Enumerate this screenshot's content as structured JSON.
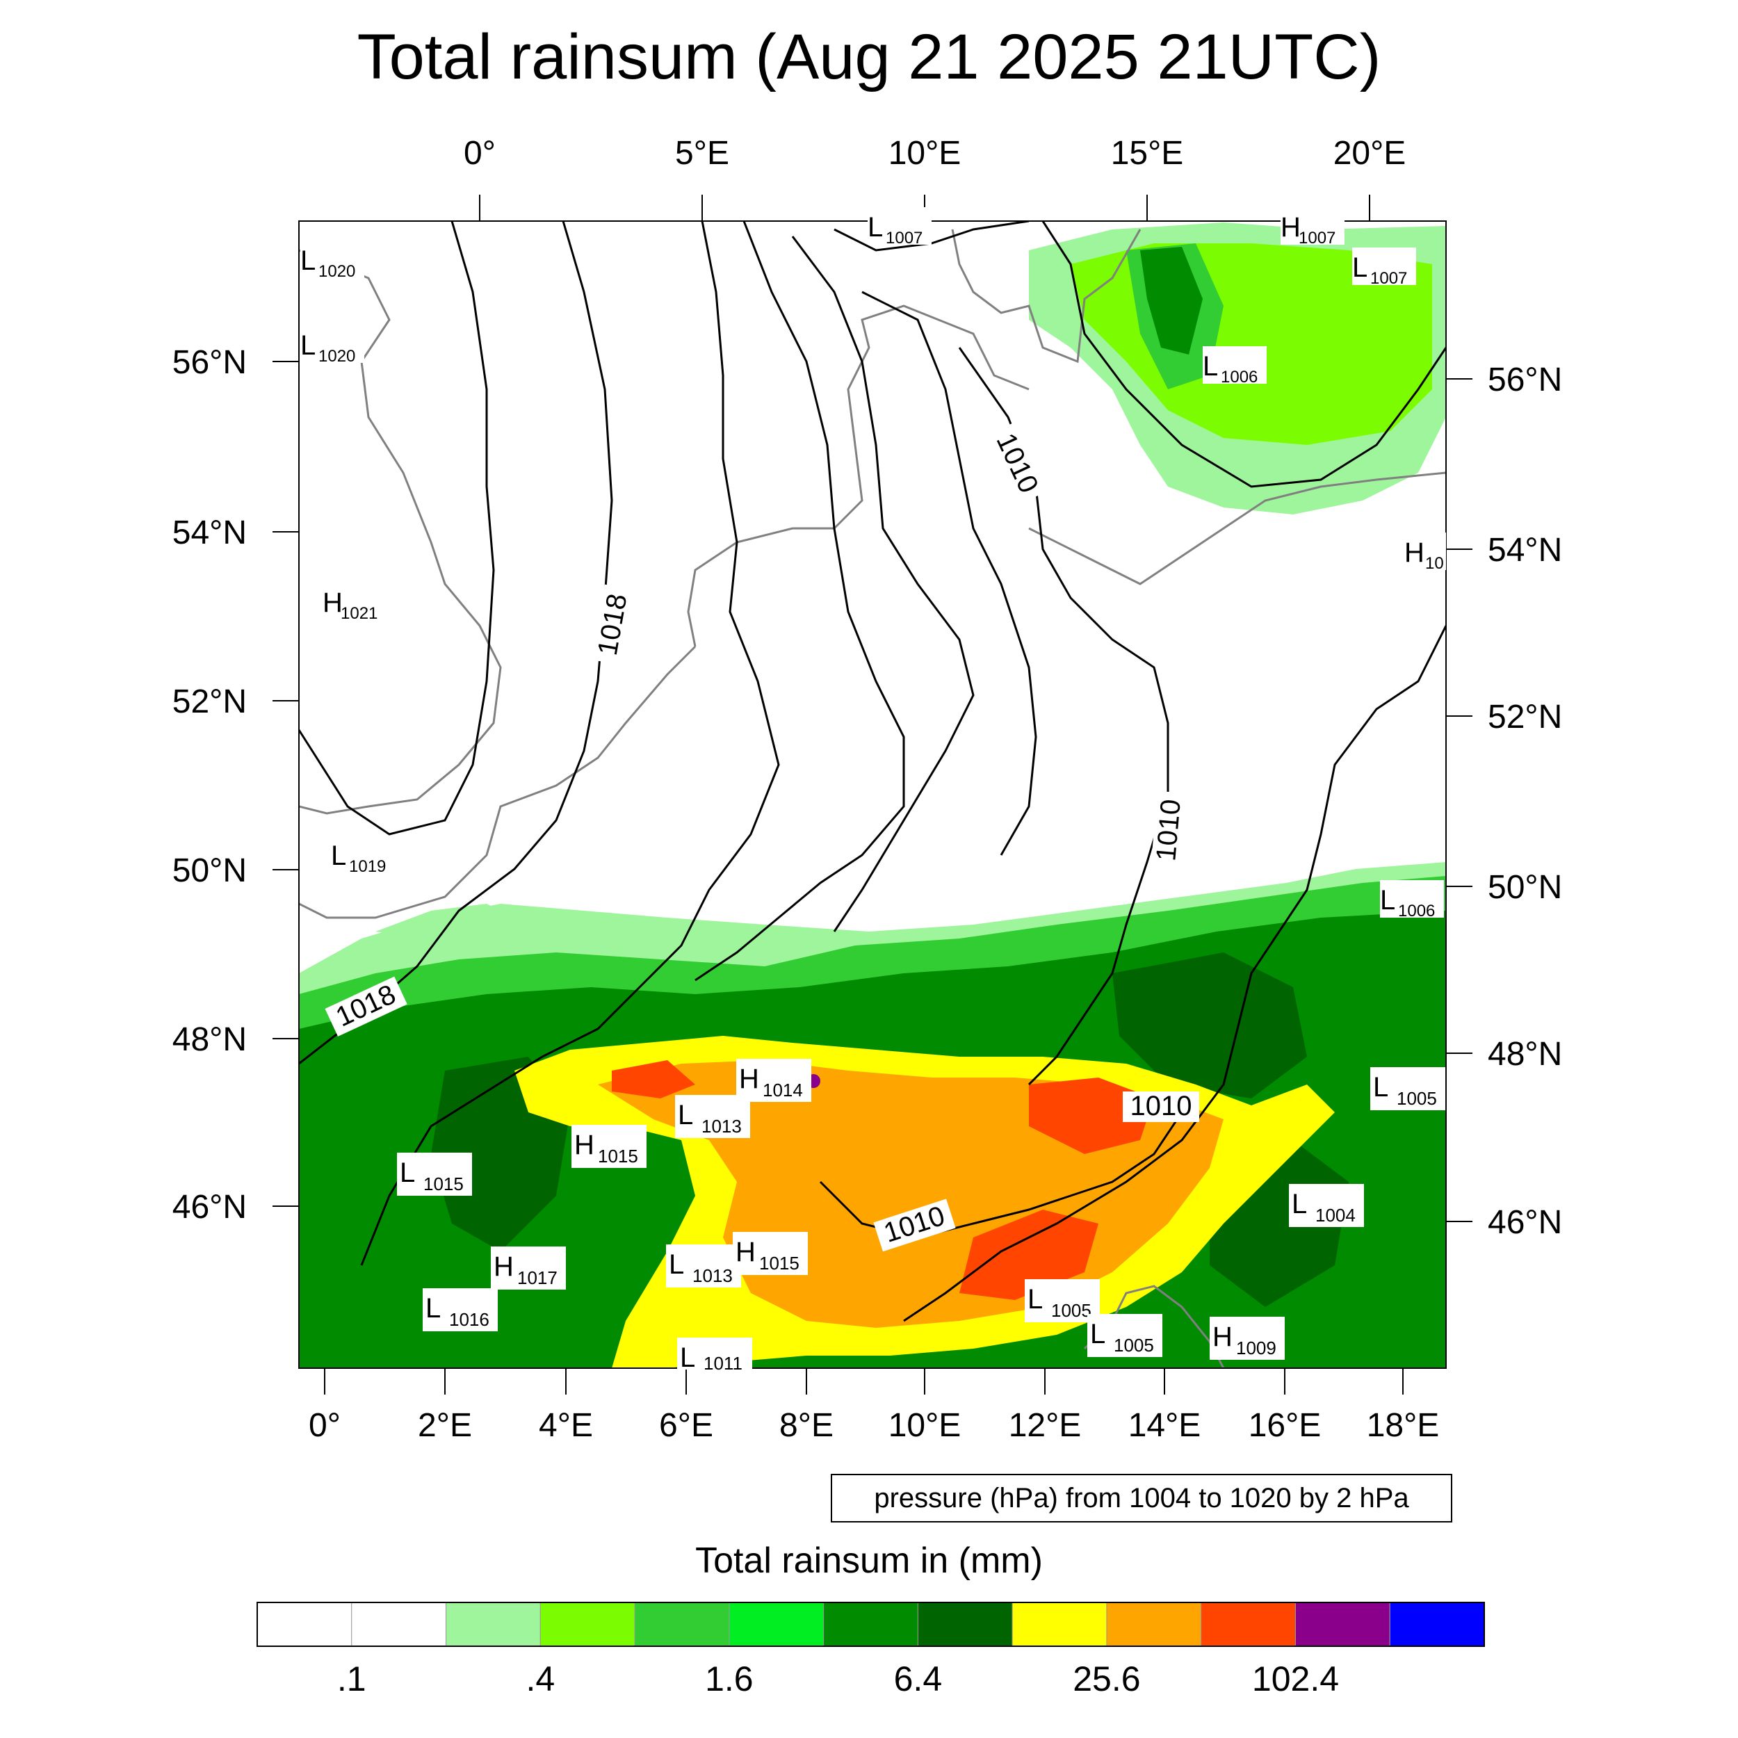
{
  "title": "Total rainsum (Aug 21 2025 21UTC)",
  "top_lon_labels": [
    "0°",
    "5°E",
    "10°E",
    "15°E",
    "20°E"
  ],
  "bottom_lon_labels": [
    "0°",
    "2°E",
    "4°E",
    "6°E",
    "8°E",
    "10°E",
    "12°E",
    "14°E",
    "16°E",
    "18°E"
  ],
  "left_lat_labels": [
    "56°N",
    "54°N",
    "52°N",
    "50°N",
    "48°N",
    "46°N"
  ],
  "right_lat_labels": [
    "56°N",
    "54°N",
    "52°N",
    "50°N",
    "48°N",
    "46°N"
  ],
  "contour_note": "pressure (hPa) from 1004 to 1020 by 2 hPa",
  "contour_labels": [
    "1018",
    "1018",
    "1010",
    "1010",
    "1010",
    "1010"
  ],
  "pressure_centers": [
    {
      "type": "L",
      "value": "1020"
    },
    {
      "type": "L",
      "value": "1020"
    },
    {
      "type": "L",
      "value": "1007"
    },
    {
      "type": "H",
      "value": "1007"
    },
    {
      "type": "L",
      "value": "1007"
    },
    {
      "type": "L",
      "value": "1006"
    },
    {
      "type": "H",
      "value": "1021"
    },
    {
      "type": "H",
      "value": "10"
    },
    {
      "type": "L",
      "value": "1019"
    },
    {
      "type": "L",
      "value": "1006"
    },
    {
      "type": "H",
      "value": "1014"
    },
    {
      "type": "L",
      "value": "1013"
    },
    {
      "type": "H",
      "value": "1015"
    },
    {
      "type": "L",
      "value": "1015"
    },
    {
      "type": "L",
      "value": "1005"
    },
    {
      "type": "L",
      "value": "1004"
    },
    {
      "type": "H",
      "value": "1017"
    },
    {
      "type": "L",
      "value": "1013"
    },
    {
      "type": "H",
      "value": "1015"
    },
    {
      "type": "L",
      "value": "1016"
    },
    {
      "type": "L",
      "value": "1005"
    },
    {
      "type": "L",
      "value": "1005"
    },
    {
      "type": "H",
      "value": "1009"
    },
    {
      "type": "L",
      "value": "1011"
    }
  ],
  "colorbar": {
    "title": "Total rainsum in (mm)",
    "colors": [
      "#ffffff",
      "#ffffff",
      "#9ef59b",
      "#7cfc00",
      "#32cd32",
      "#00ee22",
      "#008b00",
      "#006400",
      "#ffff00",
      "#ffa500",
      "#ff4500",
      "#8b008b",
      "#0000ff"
    ],
    "tick_labels": [
      ".1",
      ".4",
      "1.6",
      "6.4",
      "25.6",
      "102.4"
    ]
  },
  "colors": {
    "coast": "#808080",
    "isobar": "#000000"
  }
}
